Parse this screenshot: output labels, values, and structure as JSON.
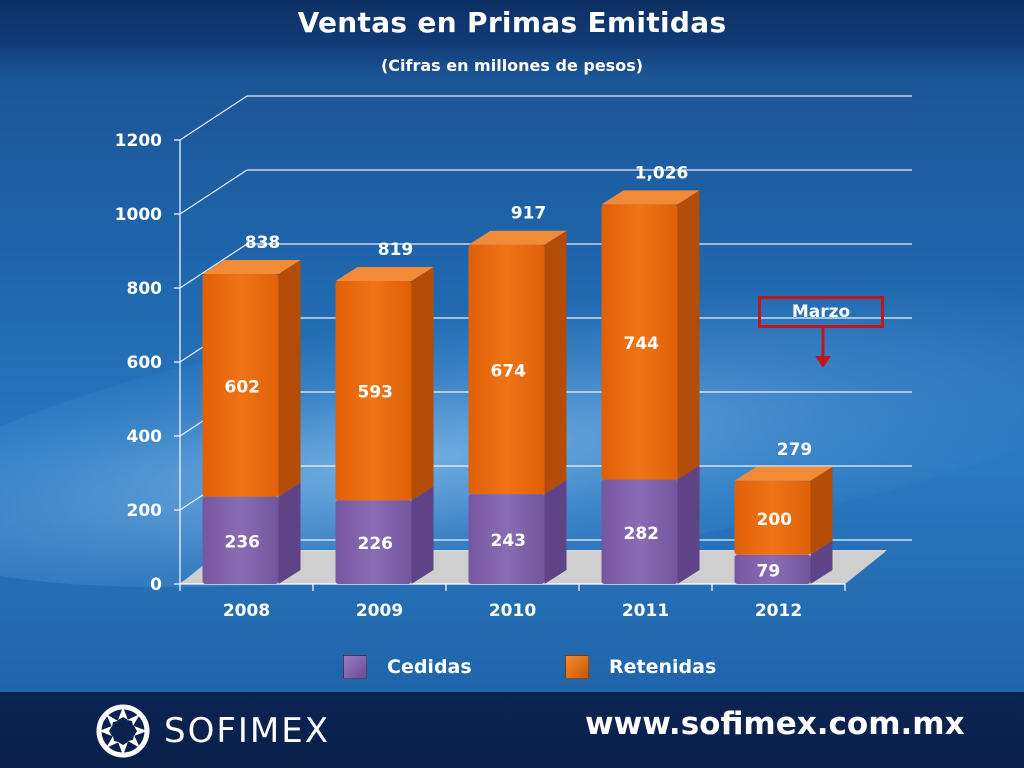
{
  "slide": {
    "title": "Ventas en Primas Emitidas",
    "subtitle": "(Cifras en millones de pesos)",
    "note": "Marzo",
    "brand": "SOFIMEX",
    "website": "www.sofimex.com.mx"
  },
  "legend": [
    {
      "label": "Cedidas",
      "color": "#7e5fa8"
    },
    {
      "label": "Retenidas",
      "color": "#e5680a"
    }
  ],
  "chart_data": {
    "type": "bar",
    "stacked": true,
    "categories": [
      "2008",
      "2009",
      "2010",
      "2011",
      "2012"
    ],
    "series": [
      {
        "name": "Cedidas",
        "values": [
          236,
          226,
          243,
          282,
          79
        ],
        "color": "#7e5fa8"
      },
      {
        "name": "Retenidas",
        "values": [
          602,
          593,
          674,
          744,
          200
        ],
        "color": "#e5680a"
      }
    ],
    "totals": [
      "838",
      "819",
      "917",
      "1,026",
      "279"
    ],
    "ylim": [
      0,
      1200
    ],
    "yticks": [
      0,
      200,
      400,
      600,
      800,
      1000,
      1200
    ],
    "grid": true,
    "legend_position": "bottom"
  }
}
